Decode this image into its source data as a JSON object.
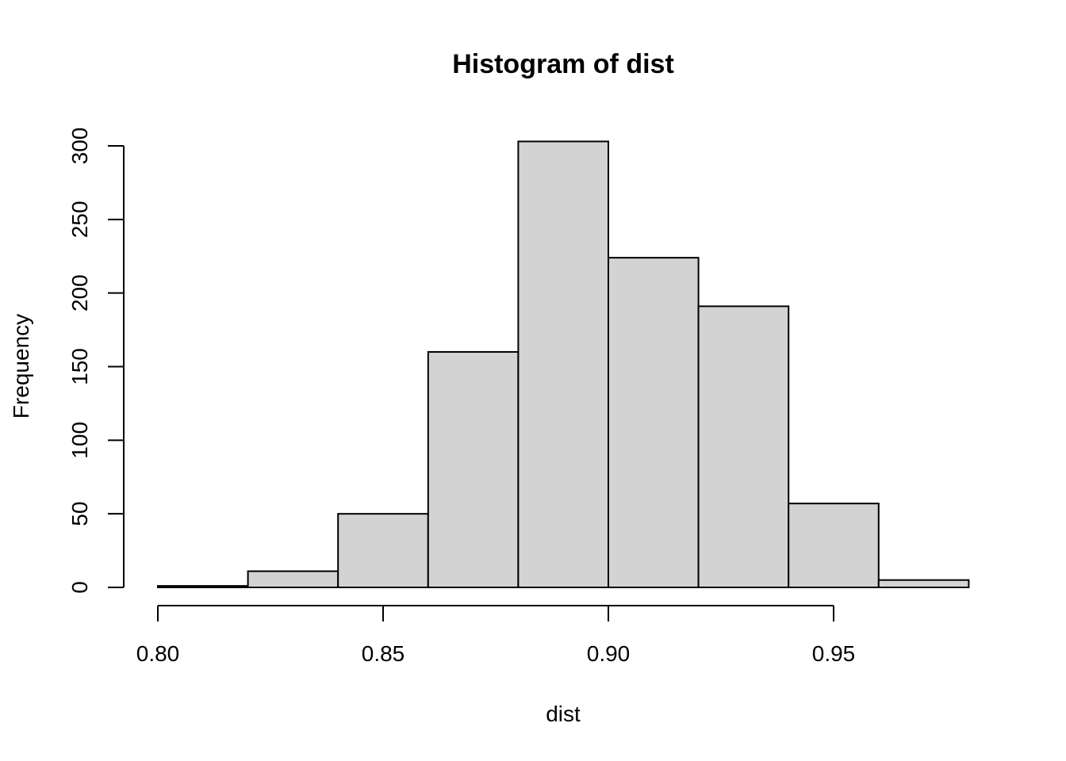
{
  "chart_data": {
    "type": "bar",
    "title": "Histogram of dist",
    "xlabel": "dist",
    "ylabel": "Frequency",
    "bins": [
      {
        "x0": 0.8,
        "x1": 0.82,
        "count": 1
      },
      {
        "x0": 0.82,
        "x1": 0.84,
        "count": 11
      },
      {
        "x0": 0.84,
        "x1": 0.86,
        "count": 50
      },
      {
        "x0": 0.86,
        "x1": 0.88,
        "count": 160
      },
      {
        "x0": 0.88,
        "x1": 0.9,
        "count": 303
      },
      {
        "x0": 0.9,
        "x1": 0.92,
        "count": 224
      },
      {
        "x0": 0.92,
        "x1": 0.94,
        "count": 191
      },
      {
        "x0": 0.94,
        "x1": 0.96,
        "count": 57
      },
      {
        "x0": 0.96,
        "x1": 0.98,
        "count": 5
      }
    ],
    "x_ticks": [
      "0.80",
      "0.85",
      "0.90",
      "0.95"
    ],
    "x_tick_values": [
      0.8,
      0.85,
      0.9,
      0.95
    ],
    "y_ticks": [
      "0",
      "50",
      "100",
      "150",
      "200",
      "250",
      "300"
    ],
    "y_tick_values": [
      0,
      50,
      100,
      150,
      200,
      250,
      300
    ],
    "xlim": [
      0.8,
      0.98
    ],
    "ylim": [
      0,
      300
    ],
    "bar_fill": "#d3d3d3",
    "grid": false,
    "legend": "none"
  }
}
